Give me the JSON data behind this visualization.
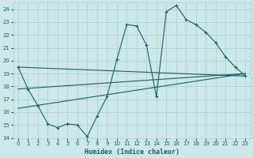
{
  "title": "",
  "xlabel": "Humidex (Indice chaleur)",
  "bg_color": "#cce8e8",
  "grid_color": "#aacccc",
  "line_color": "#1a6060",
  "xlim": [
    -0.5,
    23.5
  ],
  "ylim": [
    14,
    24.5
  ],
  "xticks": [
    0,
    1,
    2,
    3,
    4,
    5,
    6,
    7,
    8,
    9,
    10,
    11,
    12,
    13,
    14,
    15,
    16,
    17,
    18,
    19,
    20,
    21,
    22,
    23
  ],
  "yticks": [
    14,
    15,
    16,
    17,
    18,
    19,
    20,
    21,
    22,
    23,
    24
  ],
  "series1_x": [
    0,
    1,
    2,
    3,
    4,
    5,
    6,
    7,
    8,
    9,
    10,
    11,
    12,
    13,
    14,
    15,
    16,
    17,
    18,
    19,
    20,
    21,
    22,
    23
  ],
  "series1_y": [
    19.5,
    17.8,
    16.5,
    15.1,
    14.8,
    15.1,
    15.0,
    14.1,
    15.7,
    17.2,
    20.1,
    22.8,
    22.7,
    21.2,
    17.2,
    23.8,
    24.3,
    23.2,
    22.8,
    22.2,
    21.4,
    20.3,
    19.5,
    18.8
  ],
  "series2_x": [
    0,
    23
  ],
  "series2_y": [
    19.5,
    18.8
  ],
  "series3_x": [
    0,
    23
  ],
  "series3_y": [
    17.8,
    19.0
  ],
  "series4_x": [
    0,
    23
  ],
  "series4_y": [
    16.3,
    19.0
  ]
}
